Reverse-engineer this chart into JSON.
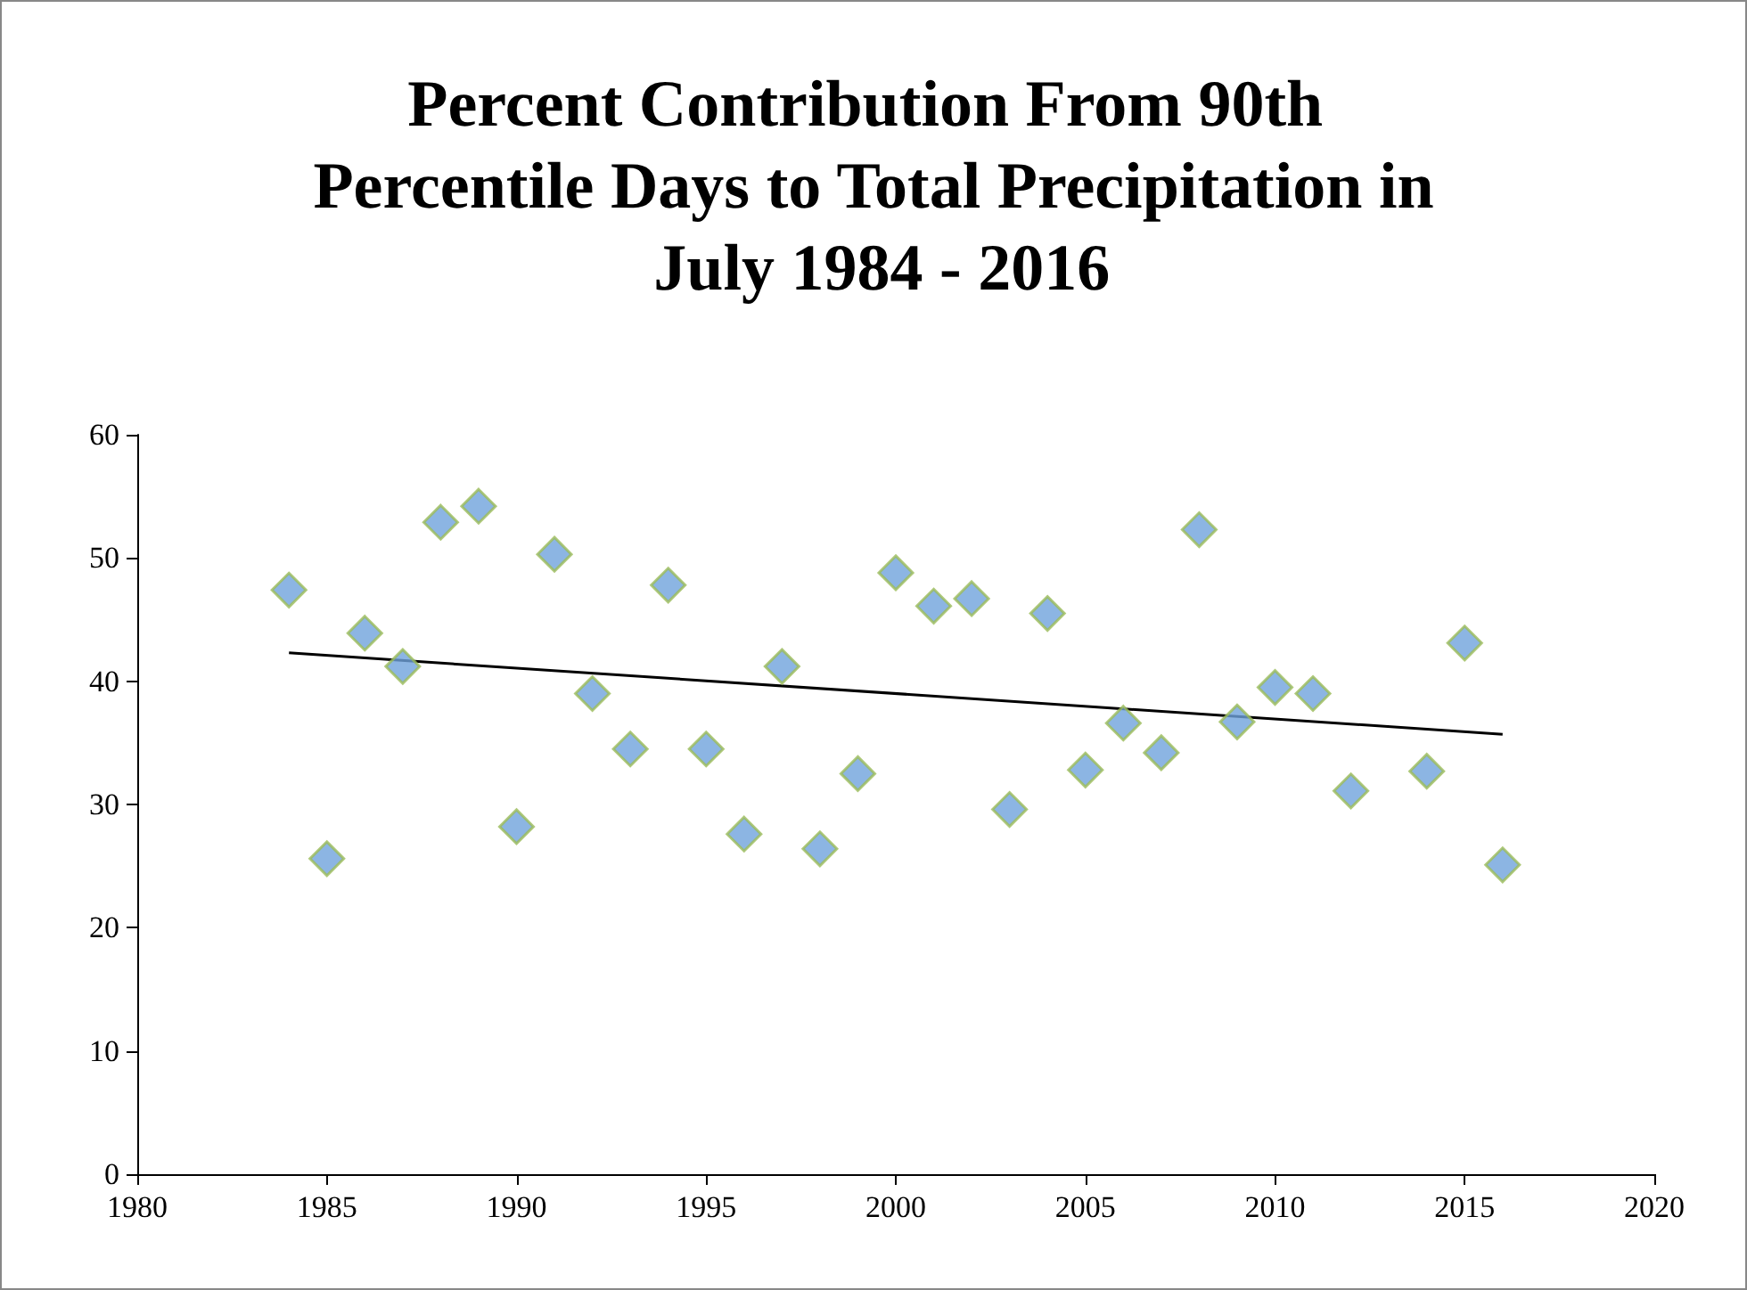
{
  "chart_data": {
    "type": "scatter",
    "title": "Percent Contribution From 90th Percentile Days to Total Precipitation in July 1984 - 2016",
    "xlim": [
      1980,
      2020
    ],
    "xticks": [
      1980,
      1985,
      1990,
      1995,
      2000,
      2005,
      2010,
      2015,
      2020
    ],
    "ylim": [
      0,
      60
    ],
    "yticks": [
      0,
      10,
      20,
      30,
      40,
      50,
      60
    ],
    "grid": false,
    "marker": "diamond",
    "series": [
      {
        "color": "#6fa3dc",
        "x": [
          1984,
          1985,
          1986,
          1987,
          1988,
          1989,
          1990,
          1991,
          1992,
          1993,
          1994,
          1995,
          1996,
          1997,
          1998,
          1999,
          2000,
          2001,
          2002,
          2003,
          2004,
          2005,
          2006,
          2007,
          2008,
          2009,
          2010,
          2011,
          2012,
          2014,
          2015,
          2016
        ],
        "values": [
          47.4,
          25.6,
          43.9,
          41.2,
          52.9,
          54.2,
          28.2,
          50.3,
          39.0,
          34.5,
          47.8,
          34.5,
          27.6,
          41.2,
          26.4,
          32.5,
          48.8,
          46.1,
          46.7,
          29.6,
          45.5,
          32.8,
          36.6,
          34.2,
          52.3,
          36.7,
          39.5,
          39.0,
          31.1,
          32.7,
          43.1,
          25.1
        ]
      },
      {
        "type": "line",
        "color": "#000000",
        "x": [
          1984,
          2016
        ],
        "values": [
          42.3,
          35.7
        ],
        "marker": "none",
        "line_style": "solid"
      }
    ]
  }
}
